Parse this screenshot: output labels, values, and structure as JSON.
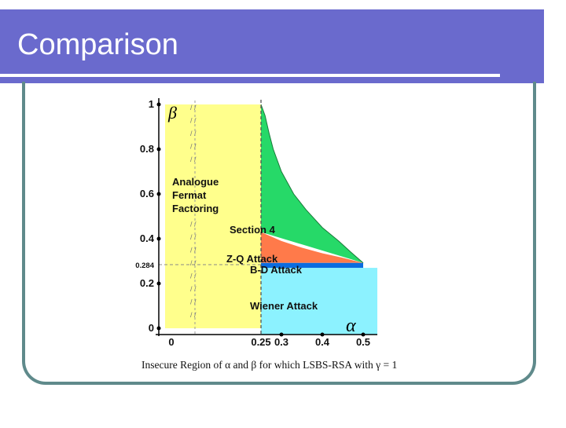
{
  "slide": {
    "title": "Comparison",
    "caption": "Insecure Region of α and β for which LSBS-RSA with γ = 1"
  },
  "chart_data": {
    "type": "area",
    "title": "",
    "xlabel": "α",
    "ylabel": "β",
    "xlim": [
      0,
      0.5
    ],
    "ylim": [
      0,
      1
    ],
    "grid": false,
    "x_ticks": [
      "0",
      "0.25",
      "0.3",
      "0.4",
      "0.5"
    ],
    "x_tick_values": [
      0,
      0.25,
      0.3,
      0.4,
      0.5
    ],
    "y_ticks": [
      "0",
      "0.2",
      "0.284",
      "0.4",
      "0.6",
      "0.8",
      "1"
    ],
    "y_tick_values": [
      0,
      0.2,
      0.284,
      0.4,
      0.6,
      0.8,
      1
    ],
    "regions": [
      {
        "name": "Analogue Fermat Factoring",
        "label_lines": [
          "Analogue",
          "Fermat",
          "Factoring"
        ],
        "color": "#ffff8c",
        "x_range": [
          0,
          0.25
        ],
        "y_range": [
          0,
          1
        ]
      },
      {
        "name": "Wiener Attack",
        "color": "#8cf2ff",
        "x_range": [
          0.25,
          0.5
        ],
        "y_range": [
          0,
          0.27
        ]
      },
      {
        "name": "B-D Attack",
        "color": "#0a6ce0",
        "x_range": [
          0.25,
          0.5
        ],
        "y_range": [
          0.27,
          0.292
        ]
      },
      {
        "name": "Z-Q Attack",
        "color": "#ff7a4a",
        "upper_boundary": [
          [
            0.25,
            0.43
          ],
          [
            0.3,
            0.39
          ],
          [
            0.35,
            0.36
          ],
          [
            0.4,
            0.335
          ],
          [
            0.45,
            0.315
          ],
          [
            0.5,
            0.292
          ]
        ]
      },
      {
        "name": "Section 4",
        "color": "#26d968",
        "upper_boundary": [
          [
            0.25,
            1.0
          ],
          [
            0.26,
            0.95
          ],
          [
            0.27,
            0.87
          ],
          [
            0.28,
            0.8
          ],
          [
            0.3,
            0.7
          ],
          [
            0.33,
            0.6
          ],
          [
            0.36,
            0.53
          ],
          [
            0.4,
            0.45
          ],
          [
            0.44,
            0.39
          ],
          [
            0.47,
            0.34
          ],
          [
            0.5,
            0.292
          ]
        ]
      }
    ],
    "reference_lines": [
      {
        "axis": "y",
        "value": 0.284
      },
      {
        "axis": "x",
        "value": 0.25
      }
    ]
  },
  "colors": {
    "title_bar": "#6a6acd",
    "frame": "#5f8a8b"
  }
}
